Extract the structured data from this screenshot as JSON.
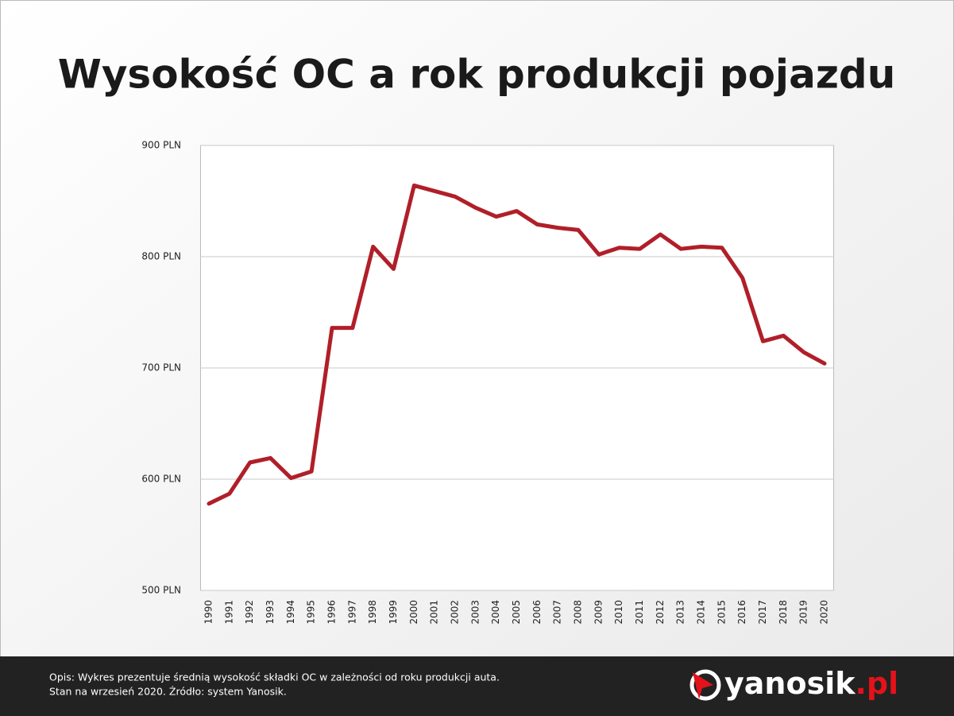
{
  "chart_data": {
    "type": "line",
    "title": "Wysokość OC a rok produkcji pojazdu",
    "categories": [
      "1990",
      "1991",
      "1992",
      "1993",
      "1994",
      "1995",
      "1996",
      "1997",
      "1998",
      "1999",
      "2000",
      "2001",
      "2002",
      "2003",
      "2004",
      "2005",
      "2006",
      "2007",
      "2008",
      "2009",
      "2010",
      "2011",
      "2012",
      "2013",
      "2014",
      "2015",
      "2016",
      "2017",
      "2018",
      "2019",
      "2020"
    ],
    "values": [
      578,
      587,
      615,
      619,
      601,
      607,
      736,
      736,
      809,
      789,
      864,
      859,
      854,
      844,
      836,
      841,
      829,
      826,
      824,
      802,
      808,
      807,
      820,
      807,
      809,
      808,
      781,
      724,
      729,
      714,
      704
    ],
    "color": "#b01f29",
    "ylim": [
      500,
      900
    ],
    "yticks": [
      {
        "value": 500,
        "label": "500 PLN"
      },
      {
        "value": 600,
        "label": "600 PLN"
      },
      {
        "value": 700,
        "label": "700 PLN"
      },
      {
        "value": 800,
        "label": "800 PLN"
      },
      {
        "value": 900,
        "label": "900 PLN"
      }
    ],
    "grid": true
  },
  "footer": {
    "description": [
      "Opis: Wykres prezentuje średnią wysokość składki OC w zależności od roku produkcji auta.",
      "Stan na wrzesień 2020. Źródło: system Yanosik."
    ],
    "logo": "yanosik",
    "logo_suffix": ".pl"
  }
}
